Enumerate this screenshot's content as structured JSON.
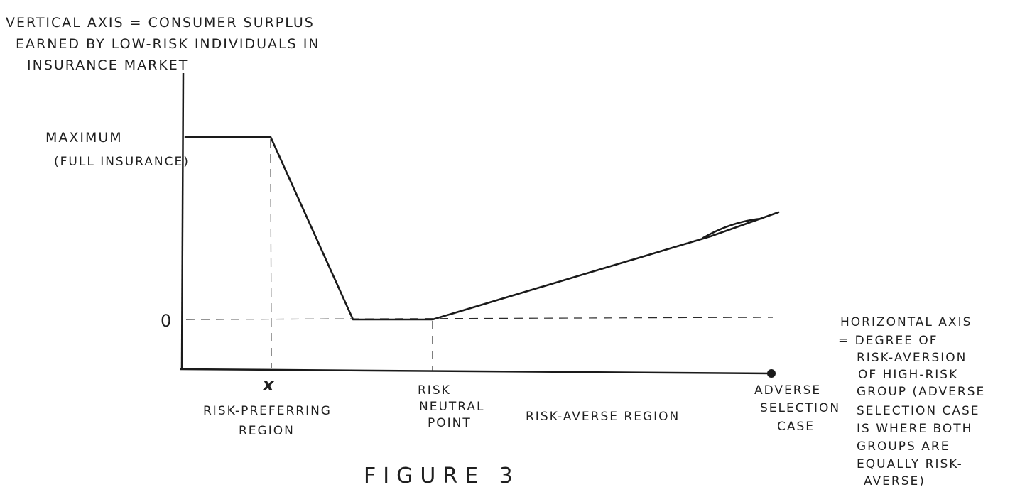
{
  "vertical_axis_label": [
    "VERTICAL AXIS = CONSUMER SURPLUS",
    "EARNED BY LOW-RISK INDIVIDUALS IN",
    "INSURANCE MARKET"
  ],
  "maximum_label": [
    "MAXIMUM",
    "(FULL INSURANCE)"
  ],
  "zero_label": "0",
  "x_point_label": "x",
  "risk_preferring_label": [
    "RISK-PREFERRING",
    "REGION"
  ],
  "risk_neutral_label": [
    "RISK",
    "NEUTRAL",
    "POINT"
  ],
  "risk_averse_label": "RISK-AVERSE REGION",
  "adverse_selection_label": [
    "ADVERSE",
    "SELECTION",
    "CASE"
  ],
  "horizontal_axis_label": [
    "HORIZONTAL AXIS",
    "= DEGREE OF",
    "RISK-AVERSION",
    "OF HIGH-RISK",
    "GROUP (ADVERSE",
    "SELECTION CASE",
    "IS WHERE BOTH",
    "GROUPS ARE",
    "EQUALLY RISK-",
    "AVERSE)"
  ],
  "figure_caption": "FIGURE 3"
}
